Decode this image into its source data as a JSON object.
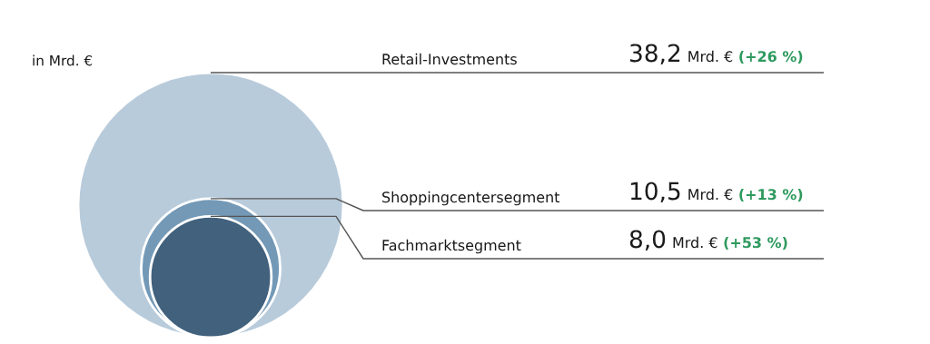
{
  "chart_data": {
    "type": "other",
    "ylabel": "in Mrd. €",
    "categories": [
      "Retail-Investments",
      "Shoppingcentersegment",
      "Fachmarktsegment"
    ],
    "values": [
      38.2,
      10.5,
      8.0
    ],
    "value_labels": [
      "38,2",
      "10,5",
      "8,0"
    ],
    "colors": [
      "#b8cbdb",
      "#7399b6",
      "#41617d"
    ],
    "annotations": [
      "Mrd. €",
      "(+26 %)",
      "Mrd. €",
      "(+13 %)",
      "Mrd. €",
      "(+53 %)"
    ]
  }
}
